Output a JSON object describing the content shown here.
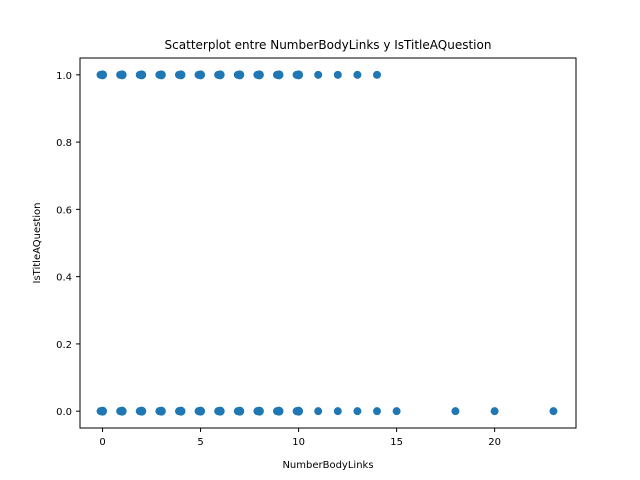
{
  "chart_data": {
    "type": "scatter",
    "title": "Scatterplot entre NumberBodyLinks y IsTitleAQuestion",
    "xlabel": "NumberBodyLinks",
    "ylabel": "IsTitleAQuestion",
    "xlim": [
      -1.15,
      24.15
    ],
    "ylim": [
      -0.05,
      1.05
    ],
    "xticks": [
      0,
      5,
      10,
      15,
      20
    ],
    "yticks": [
      0.0,
      0.2,
      0.4,
      0.6,
      0.8,
      1.0
    ],
    "ytick_labels": [
      "0.0",
      "0.2",
      "0.4",
      "0.6",
      "0.8",
      "1.0"
    ],
    "grid": false,
    "legend": "none",
    "marker_color": "#1f77b4",
    "points": [
      {
        "x": 0,
        "y": 1
      },
      {
        "x": 1,
        "y": 1
      },
      {
        "x": 2,
        "y": 1
      },
      {
        "x": 3,
        "y": 1
      },
      {
        "x": 4,
        "y": 1
      },
      {
        "x": 5,
        "y": 1
      },
      {
        "x": 6,
        "y": 1
      },
      {
        "x": 7,
        "y": 1
      },
      {
        "x": 8,
        "y": 1
      },
      {
        "x": 9,
        "y": 1
      },
      {
        "x": 10,
        "y": 1
      },
      {
        "x": 11,
        "y": 1
      },
      {
        "x": 12,
        "y": 1
      },
      {
        "x": 13,
        "y": 1
      },
      {
        "x": 14,
        "y": 1
      },
      {
        "x": 0,
        "y": 0
      },
      {
        "x": 1,
        "y": 0
      },
      {
        "x": 2,
        "y": 0
      },
      {
        "x": 3,
        "y": 0
      },
      {
        "x": 4,
        "y": 0
      },
      {
        "x": 5,
        "y": 0
      },
      {
        "x": 6,
        "y": 0
      },
      {
        "x": 7,
        "y": 0
      },
      {
        "x": 8,
        "y": 0
      },
      {
        "x": 9,
        "y": 0
      },
      {
        "x": 10,
        "y": 0
      },
      {
        "x": 11,
        "y": 0
      },
      {
        "x": 12,
        "y": 0
      },
      {
        "x": 13,
        "y": 0
      },
      {
        "x": 14,
        "y": 0
      },
      {
        "x": 15,
        "y": 0
      },
      {
        "x": 18,
        "y": 0
      },
      {
        "x": 20,
        "y": 0
      },
      {
        "x": 23,
        "y": 0
      }
    ],
    "dense_x_max": 10
  }
}
